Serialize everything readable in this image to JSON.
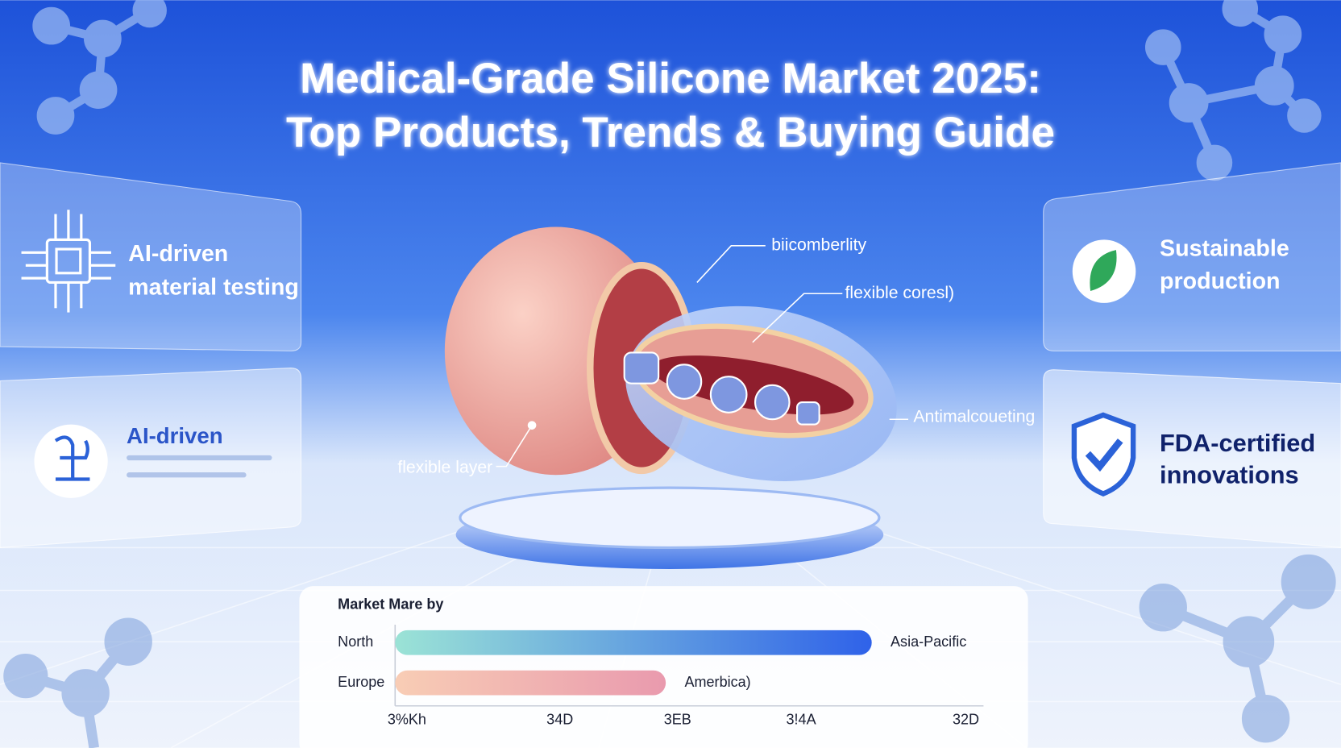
{
  "header": {
    "title_line1": "Medical-Grade Silicone Market 2025:",
    "title_line2": "Top Products, Trends & Buying Guide"
  },
  "cards": {
    "left_top": {
      "line1": "AI-driven",
      "line2": "material testing"
    },
    "left_bottom": {
      "line1": "AI-driven"
    },
    "right_top": {
      "line1": "Sustainable",
      "line2": "production"
    },
    "right_bottom": {
      "line1": "FDA-certified",
      "line2": "innovations"
    }
  },
  "callouts": {
    "top": "biicomberlity",
    "middle": "flexible coresl)",
    "right": "Antimalcoueting",
    "left": "flexible layer"
  },
  "chart_data": {
    "type": "bar",
    "orientation": "horizontal",
    "title": "Market Mare by",
    "categories": [
      "North",
      "Europe"
    ],
    "values": [
      81,
      46
    ],
    "bar_labels": [
      "Asia-Pacific",
      "Amerbica)"
    ],
    "bar_gradients": [
      [
        "#9be3d6",
        "#2f62e9"
      ],
      [
        "#f8cdb5",
        "#e99aae"
      ]
    ],
    "xlim": [
      0,
      100
    ],
    "xticks": [
      {
        "value": 2,
        "label": "3%Kh"
      },
      {
        "value": 28,
        "label": "34D"
      },
      {
        "value": 48,
        "label": "3EB"
      },
      {
        "value": 69,
        "label": "3!4A"
      },
      {
        "value": 97,
        "label": "32D"
      }
    ]
  }
}
